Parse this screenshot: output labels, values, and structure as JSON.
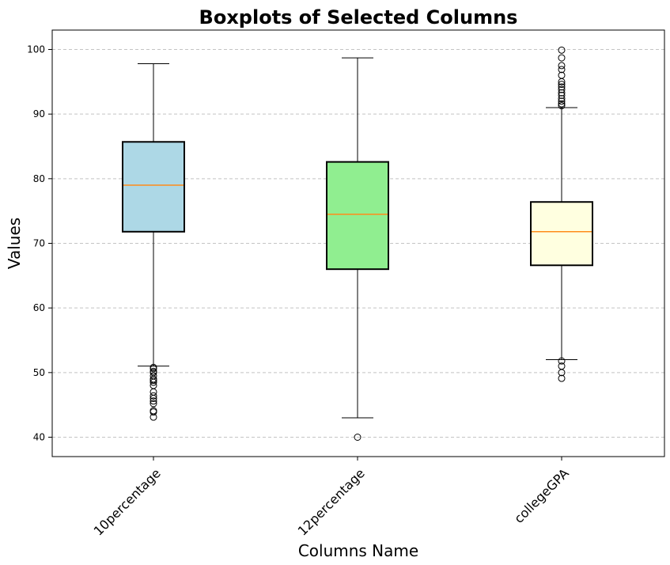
{
  "chart_data": {
    "type": "box",
    "title": "Boxplots of Selected Columns",
    "xlabel": "Columns Name",
    "ylabel": "Values",
    "ylim": [
      37,
      103
    ],
    "yticks": [
      40,
      50,
      60,
      70,
      80,
      90,
      100
    ],
    "grid": {
      "y": true,
      "style": "dashed"
    },
    "categories": [
      "10percentage",
      "12percentage",
      "collegeGPA"
    ],
    "boxes": [
      {
        "name": "10percentage",
        "color": "#add8e6",
        "whisker_low": 51.0,
        "q1": 71.8,
        "median": 79.0,
        "q3": 85.7,
        "whisker_high": 97.8,
        "outliers": [
          50.8,
          50.6,
          50.2,
          50.0,
          49.5,
          49.0,
          48.8,
          48.5,
          48.0,
          47.0,
          46.4,
          46.0,
          45.6,
          45.2,
          44.1,
          43.9,
          43.1
        ]
      },
      {
        "name": "12percentage",
        "color": "#90ee90",
        "whisker_low": 43.0,
        "q1": 66.0,
        "median": 74.5,
        "q3": 82.6,
        "whisker_high": 98.7,
        "outliers": [
          40.0
        ]
      },
      {
        "name": "collegeGPA",
        "color": "#ffffe0",
        "whisker_low": 52.0,
        "q1": 66.6,
        "median": 71.8,
        "q3": 76.4,
        "whisker_high": 91.0,
        "outliers": [
          99.9,
          98.7,
          97.5,
          96.9,
          96.0,
          95.0,
          94.6,
          94.2,
          93.8,
          93.3,
          92.9,
          92.4,
          92.0,
          91.6,
          91.3,
          51.8,
          51.0,
          50.0,
          49.1
        ]
      }
    ],
    "median_color": "#ff8c1a"
  }
}
